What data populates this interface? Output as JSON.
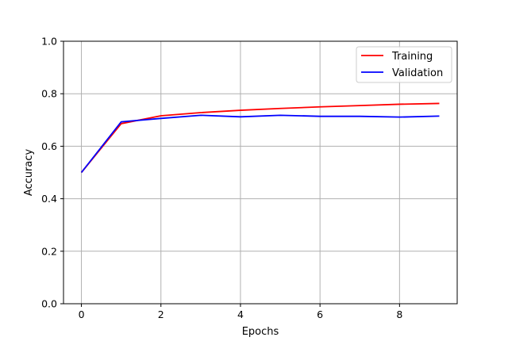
{
  "chart_data": {
    "type": "line",
    "title": "",
    "xlabel": "Epochs",
    "ylabel": "Accuracy",
    "x": [
      0,
      1,
      2,
      3,
      4,
      5,
      6,
      7,
      8,
      9
    ],
    "xlim": [
      -0.45,
      9.45
    ],
    "ylim": [
      0.0,
      1.0
    ],
    "xticks": [
      0,
      2,
      4,
      6,
      8
    ],
    "xtick_labels": [
      "0",
      "2",
      "4",
      "6",
      "8"
    ],
    "yticks": [
      0.0,
      0.2,
      0.4,
      0.6,
      0.8,
      1.0
    ],
    "ytick_labels": [
      "0.0",
      "0.2",
      "0.4",
      "0.6",
      "0.8",
      "1.0"
    ],
    "grid": true,
    "legend_position": "top-right",
    "series": [
      {
        "name": "Training",
        "color": "#ff0000",
        "values": [
          0.5,
          0.686,
          0.716,
          0.728,
          0.737,
          0.744,
          0.75,
          0.755,
          0.76,
          0.763
        ]
      },
      {
        "name": "Validation",
        "color": "#0000ff",
        "values": [
          0.5,
          0.693,
          0.706,
          0.718,
          0.712,
          0.718,
          0.714,
          0.714,
          0.711,
          0.715
        ]
      }
    ]
  }
}
